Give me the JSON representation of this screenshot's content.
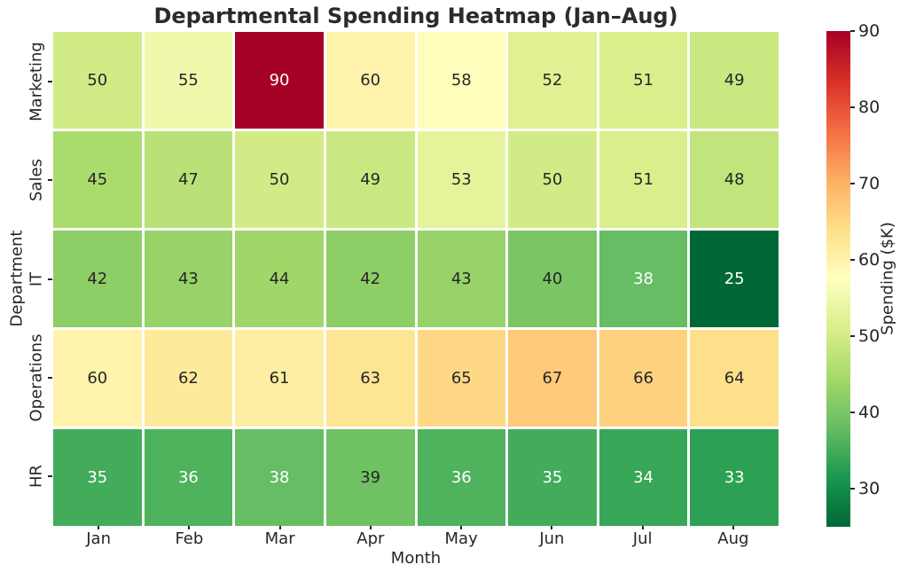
{
  "chart_data": {
    "type": "heatmap",
    "title": "Departmental Spending Heatmap (Jan–Aug)",
    "xlabel": "Month",
    "ylabel": "Department",
    "x_categories": [
      "Jan",
      "Feb",
      "Mar",
      "Apr",
      "May",
      "Jun",
      "Jul",
      "Aug"
    ],
    "y_categories": [
      "Marketing",
      "Sales",
      "IT",
      "Operations",
      "HR"
    ],
    "rows": [
      [
        50,
        55,
        90,
        60,
        58,
        52,
        51,
        49
      ],
      [
        45,
        47,
        50,
        49,
        53,
        50,
        51,
        48
      ],
      [
        42,
        43,
        44,
        42,
        43,
        40,
        38,
        25
      ],
      [
        60,
        62,
        61,
        63,
        65,
        67,
        66,
        64
      ],
      [
        35,
        36,
        38,
        39,
        36,
        35,
        34,
        33
      ]
    ],
    "vmin": 25,
    "vmax": 90,
    "colormap_name": "RdYlGn_r",
    "colormap_stops_low_to_high": [
      "#006837",
      "#1a9850",
      "#66bd63",
      "#a6d96a",
      "#d9ef8b",
      "#ffffbf",
      "#fee08b",
      "#fdae61",
      "#f46d43",
      "#d73027",
      "#a50026"
    ],
    "annotation_text_dark": "#262626",
    "annotation_text_light": "#ffffff",
    "cell_line_color": "#ffffff",
    "grid_lines": false,
    "legend": null,
    "colorbar": {
      "label": "Spending ($K)",
      "ticks": [
        90,
        80,
        70,
        60,
        50,
        40,
        30
      ]
    }
  }
}
